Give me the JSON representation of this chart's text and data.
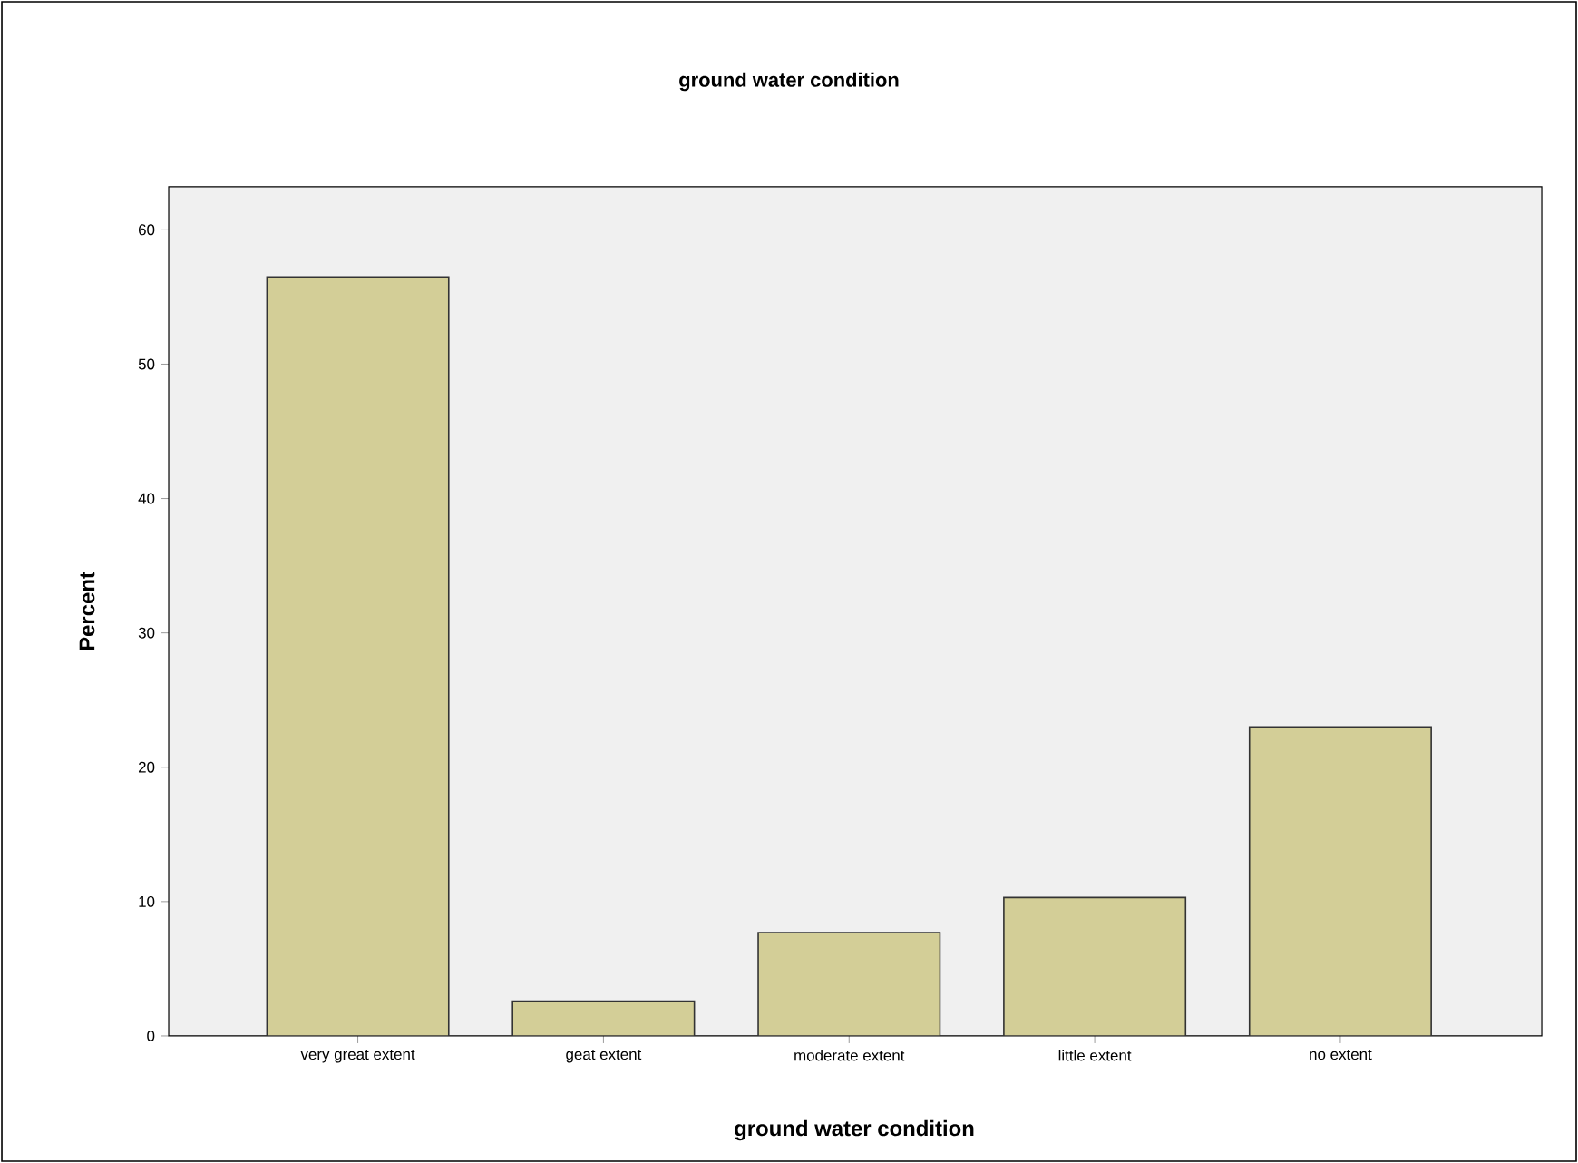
{
  "chart_data": {
    "type": "bar",
    "title": "ground water condition",
    "xlabel": "ground water condition",
    "ylabel": "Percent",
    "categories": [
      "very great extent",
      "geat extent",
      "moderate extent",
      "little extent",
      "no extent"
    ],
    "values": [
      56.5,
      2.6,
      7.7,
      10.3,
      23.0
    ],
    "color": "#d3ce97",
    "ylim": [
      0,
      63.2
    ],
    "yticks": [
      0,
      10,
      20,
      30,
      40,
      50,
      60
    ],
    "grid": false
  }
}
